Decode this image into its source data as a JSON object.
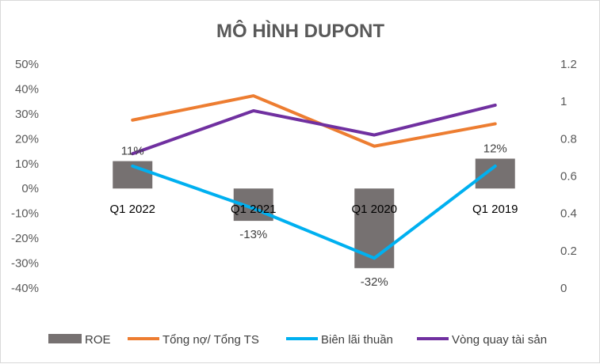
{
  "chart_data": {
    "type": "bar+line",
    "title": "MÔ HÌNH DUPONT",
    "categories": [
      "Q1 2022",
      "Q1 2021",
      "Q1 2020",
      "Q1 2019"
    ],
    "left_axis": {
      "ylim": [
        -0.4,
        0.5
      ],
      "ticks": [
        0.5,
        0.4,
        0.3,
        0.2,
        0.1,
        0,
        -0.1,
        -0.2,
        -0.3,
        -0.4
      ],
      "tick_labels": [
        "50%",
        "40%",
        "30%",
        "20%",
        "10%",
        "0%",
        "-10%",
        "-20%",
        "-30%",
        "-40%"
      ]
    },
    "right_axis": {
      "ylim": [
        0,
        1.2
      ],
      "ticks": [
        1.2,
        1,
        0.8,
        0.6,
        0.4,
        0.2,
        0
      ],
      "tick_labels": [
        "1.2",
        "1",
        "0.8",
        "0.6",
        "0.4",
        "0.2",
        "0"
      ]
    },
    "series": [
      {
        "name": "ROE",
        "kind": "bar",
        "axis": "left",
        "color": "#767171",
        "values": [
          0.11,
          -0.13,
          -0.32,
          0.12
        ],
        "data_labels": [
          "11%",
          "-13%",
          "-32%",
          "12%"
        ]
      },
      {
        "name": "Tổng nợ/ Tổng TS",
        "kind": "line",
        "axis": "right",
        "color": "#ED7D31",
        "values": [
          0.9,
          1.03,
          0.76,
          0.88
        ]
      },
      {
        "name": "Biên lãi thuần",
        "kind": "line",
        "axis": "left",
        "color": "#00B0F0",
        "values": [
          0.09,
          -0.08,
          -0.28,
          0.09
        ]
      },
      {
        "name": "Vòng quay tài sản",
        "kind": "line",
        "axis": "right",
        "color": "#7030A0",
        "values": [
          0.72,
          0.95,
          0.82,
          0.98
        ]
      }
    ],
    "legend_position": "bottom",
    "grid": false
  }
}
